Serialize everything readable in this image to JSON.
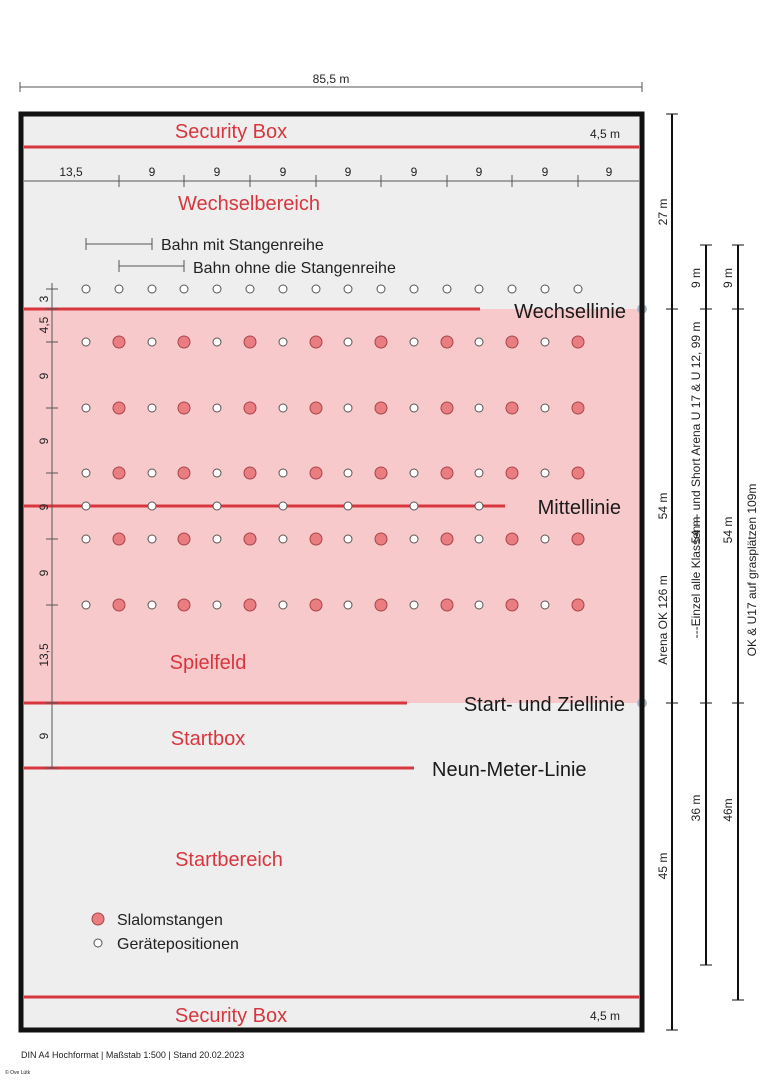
{
  "colors": {
    "red": "#d8363e",
    "field": "#f8c9cb",
    "background": "#eeeeee",
    "pole": "#e97d80",
    "marker": "#a9b8c8"
  },
  "total_width": "85,5 m",
  "zones": {
    "security_top": "Security Box",
    "security_top_dim": "4,5 m",
    "wechselbereich": "Wechselbereich",
    "spielfeld": "Spielfeld",
    "startbox": "Startbox",
    "startbereich": "Startbereich",
    "security_bottom": "Security Box",
    "security_bottom_dim": "4,5 m"
  },
  "lines": {
    "wechsellinie": "Wechsellinie",
    "mittellinie": "Mittellinie",
    "start_ziel": "Start- und Ziellinie",
    "neun_meter": "Neun-Meter-Linie"
  },
  "lanes": {
    "with_poles": "Bahn mit Stangenreihe",
    "without_poles": "Bahn ohne die Stangenreihe"
  },
  "column_spacing": [
    "13,5",
    "9",
    "9",
    "9",
    "9",
    "9",
    "9",
    "9",
    "9"
  ],
  "row_spacing": [
    "3",
    "4,5",
    "9",
    "9",
    "9",
    "9",
    "13,5",
    "9"
  ],
  "legend": {
    "poles": "Slalomstangen",
    "positions": "Gerätepositionen"
  },
  "dimensions": {
    "d27": "27 m",
    "d54a": "54 m",
    "d45": "45 m",
    "arena_ok": "Arena OK 126 m",
    "einzel": "---Einzel alle Klassen--- und Short Arena U 17 & U 12, 99 m",
    "d54b": "54 m",
    "d9a": "9 m",
    "d36": "36 m",
    "ok_u17": "OK & U17 auf grasplätzen  109m",
    "d54c": "54 m",
    "d9b": "9 m",
    "d46": "46m"
  },
  "footer": "DIN A4 Hochformat | Maßstab 1:500 | Stand 20.02.2023",
  "credit": "© Ove Lütk"
}
